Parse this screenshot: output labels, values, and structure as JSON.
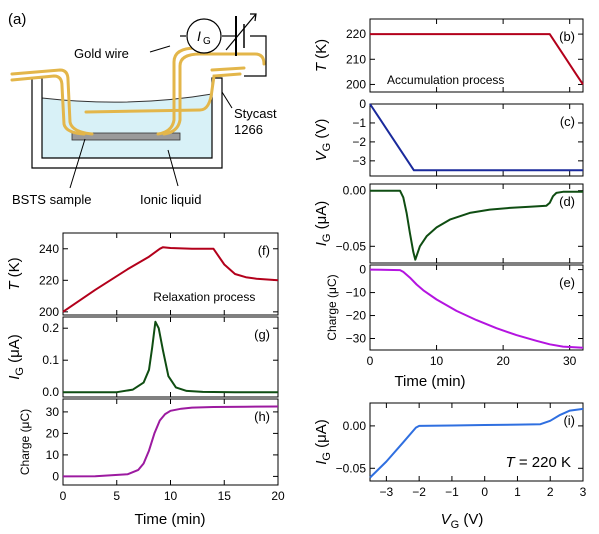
{
  "diagram": {
    "panel_label": "(a)",
    "current_symbol": "I",
    "current_sub": "G",
    "gold_wire": "Gold wire",
    "stycast_1": "Stycast",
    "stycast_2": "1266",
    "sample": "BSTS sample",
    "liquid": "Ionic liquid",
    "colors": {
      "wire": "#e3b64a",
      "liquid": "#d8f1f7",
      "sample": "#9a9a9a"
    }
  },
  "chart_data": [
    {
      "id": "b",
      "type": "line",
      "panel_label": "(b)",
      "ylabel": "T (K)",
      "ylabel_var": "T",
      "ylabel_sub": "",
      "ylabel_unit": " (K)",
      "ylabel_small": false,
      "xlim": [
        0,
        32
      ],
      "ylim": [
        197,
        226
      ],
      "yticks": [
        200,
        210,
        220
      ],
      "ytick_labels": [
        "200",
        "210",
        "220"
      ],
      "xticks": [
        0,
        10,
        20,
        30
      ],
      "annotation": "Accumulation process",
      "series": [
        {
          "color": "#b3001b",
          "x": [
            0,
            27,
            29,
            31,
            32
          ],
          "y": [
            220,
            220,
            212,
            204,
            200
          ]
        }
      ]
    },
    {
      "id": "c",
      "type": "line",
      "panel_label": "(c)",
      "ylabel": "VG (V)",
      "ylabel_var": "V",
      "ylabel_sub": "G",
      "ylabel_unit": " (V)",
      "ylabel_small": false,
      "xlim": [
        0,
        32
      ],
      "ylim": [
        -3.8,
        0
      ],
      "yticks": [
        -3,
        -2,
        -1,
        0
      ],
      "ytick_labels": [
        "−3",
        "−2",
        "−1",
        "0"
      ],
      "xticks": [
        0,
        10,
        20,
        30
      ],
      "series": [
        {
          "color": "#1a2a9c",
          "x": [
            0,
            6.6,
            32
          ],
          "y": [
            0,
            -3.5,
            -3.5
          ]
        }
      ]
    },
    {
      "id": "d",
      "type": "line",
      "panel_label": "(d)",
      "ylabel": "IG (μA)",
      "ylabel_var": "I",
      "ylabel_sub": "G",
      "ylabel_unit": " (μA)",
      "ylabel_small": false,
      "xlim": [
        0,
        32
      ],
      "ylim": [
        -0.065,
        0.006
      ],
      "yticks": [
        0,
        -0.05
      ],
      "ytick_labels": [
        "0.00",
        "−0.05"
      ],
      "xticks": [
        0,
        10,
        20,
        30
      ],
      "series": [
        {
          "color": "#0f4d12",
          "x": [
            0,
            4.5,
            5,
            5.5,
            6,
            6.5,
            6.8,
            7.5,
            8.5,
            10,
            12,
            15,
            18,
            21,
            24,
            26.5,
            27,
            27.5,
            28,
            29,
            32
          ],
          "y": [
            0,
            0,
            -0.006,
            -0.02,
            -0.038,
            -0.055,
            -0.062,
            -0.05,
            -0.041,
            -0.033,
            -0.026,
            -0.02,
            -0.017,
            -0.0155,
            -0.0145,
            -0.0135,
            -0.011,
            -0.005,
            -0.002,
            -0.001,
            -0.001
          ]
        }
      ]
    },
    {
      "id": "e",
      "type": "line",
      "panel_label": "(e)",
      "ylabel": "Charge (μC)",
      "ylabel_var": "Charge (μC)",
      "ylabel_sub": "",
      "ylabel_unit": "",
      "ylabel_small": true,
      "xlim": [
        0,
        32
      ],
      "ylim": [
        -35,
        2
      ],
      "yticks": [
        0,
        -10,
        -20,
        -30
      ],
      "ytick_labels": [
        "0",
        "−10",
        "−20",
        "−30"
      ],
      "xticks": [
        0,
        10,
        20,
        30
      ],
      "series": [
        {
          "color": "#b414e0",
          "x": [
            0,
            4.5,
            5,
            6,
            7,
            8,
            10,
            13,
            16,
            19,
            22,
            25,
            27,
            29,
            32
          ],
          "y": [
            0,
            -0.2,
            -1,
            -3.5,
            -6.5,
            -9,
            -13,
            -18,
            -22,
            -25.5,
            -28.5,
            -31,
            -32.5,
            -33.5,
            -34
          ]
        }
      ]
    },
    {
      "id": "f",
      "type": "line",
      "panel_label": "(f)",
      "ylabel": "T (K)",
      "ylabel_var": "T",
      "ylabel_sub": "",
      "ylabel_unit": " (K)",
      "ylabel_small": false,
      "xlim": [
        0,
        20
      ],
      "ylim": [
        198,
        250
      ],
      "yticks": [
        200,
        220,
        240
      ],
      "ytick_labels": [
        "200",
        "220",
        "240"
      ],
      "xticks": [
        0,
        5,
        10,
        15,
        20
      ],
      "annotation": "Relaxation process",
      "series": [
        {
          "color": "#b3001b",
          "x": [
            0,
            3,
            6,
            8,
            9,
            9.3,
            10,
            12,
            14,
            15,
            16,
            17,
            18,
            20
          ],
          "y": [
            200,
            214,
            227,
            235,
            240,
            241,
            240.5,
            240,
            240,
            230,
            224,
            222,
            221,
            220
          ]
        }
      ]
    },
    {
      "id": "g",
      "type": "line",
      "panel_label": "(g)",
      "ylabel": "IG (μA)",
      "ylabel_var": "I",
      "ylabel_sub": "G",
      "ylabel_unit": " (μA)",
      "ylabel_small": false,
      "xlim": [
        0,
        20
      ],
      "ylim": [
        -0.015,
        0.235
      ],
      "yticks": [
        0,
        0.1,
        0.2
      ],
      "ytick_labels": [
        "0.0",
        "0.1",
        "0.2"
      ],
      "xticks": [
        0,
        5,
        10,
        15,
        20
      ],
      "series": [
        {
          "color": "#0f4d12",
          "x": [
            0,
            5,
            6.5,
            7.5,
            8,
            8.3,
            8.6,
            8.9,
            9.3,
            9.8,
            10.5,
            11.5,
            13,
            16,
            20
          ],
          "y": [
            0,
            0,
            0.008,
            0.03,
            0.07,
            0.14,
            0.22,
            0.2,
            0.13,
            0.05,
            0.015,
            0.004,
            0.001,
            0,
            0
          ]
        }
      ]
    },
    {
      "id": "h",
      "type": "line",
      "panel_label": "(h)",
      "ylabel": "Charge (μC)",
      "ylabel_var": "Charge (μC)",
      "ylabel_sub": "",
      "ylabel_unit": "",
      "ylabel_small": true,
      "xlim": [
        0,
        20
      ],
      "ylim": [
        -4,
        36
      ],
      "yticks": [
        0,
        10,
        20,
        30
      ],
      "ytick_labels": [
        "0",
        "10",
        "20",
        "30"
      ],
      "xticks": [
        0,
        5,
        10,
        15,
        20
      ],
      "xtick_labels": [
        "0",
        "5",
        "10",
        "15",
        "20"
      ],
      "series": [
        {
          "color": "#9c1aa0",
          "x": [
            0,
            3,
            6,
            7,
            7.5,
            8,
            8.5,
            9,
            9.5,
            10,
            11,
            12,
            14,
            17,
            20
          ],
          "y": [
            0,
            0.1,
            1,
            3,
            6,
            12,
            20,
            26,
            29,
            30.5,
            31.5,
            32,
            32.3,
            32.4,
            32.5
          ]
        }
      ]
    },
    {
      "id": "i",
      "type": "line",
      "panel_label": "(i)",
      "ylabel": "IG (μA)",
      "ylabel_var": "I",
      "ylabel_sub": "G",
      "ylabel_unit": " (μA)",
      "ylabel_small": false,
      "xlim": [
        -3.5,
        3
      ],
      "ylim": [
        -0.065,
        0.027
      ],
      "yticks": [
        0,
        -0.05
      ],
      "ytick_labels": [
        "0.00",
        "−0.05"
      ],
      "xticks": [
        -3,
        -2,
        -1,
        0,
        1,
        2,
        3
      ],
      "xtick_labels": [
        "−3",
        "−2",
        "−1",
        "0",
        "1",
        "2",
        "3"
      ],
      "annotation_var": "T",
      "annotation_rest": " = 220 K",
      "series": [
        {
          "color": "#2f6fe0",
          "x": [
            -3.5,
            -3,
            -2.5,
            -2.1,
            -2,
            -1,
            0,
            1,
            1.7,
            2,
            2.3,
            2.6,
            3
          ],
          "y": [
            -0.061,
            -0.042,
            -0.02,
            -0.002,
            0,
            0.0005,
            0.001,
            0.0015,
            0.002,
            0.006,
            0.013,
            0.018,
            0.02
          ]
        }
      ]
    }
  ],
  "shared_axes": {
    "right_xlabel": "Time (min)",
    "left_xlabel": "Time (min)",
    "right_xtick_labels": [
      "0",
      "10",
      "20",
      "30"
    ],
    "bottom_xlabel_var": "V",
    "bottom_xlabel_sub": "G",
    "bottom_xlabel_unit": " (V)"
  }
}
